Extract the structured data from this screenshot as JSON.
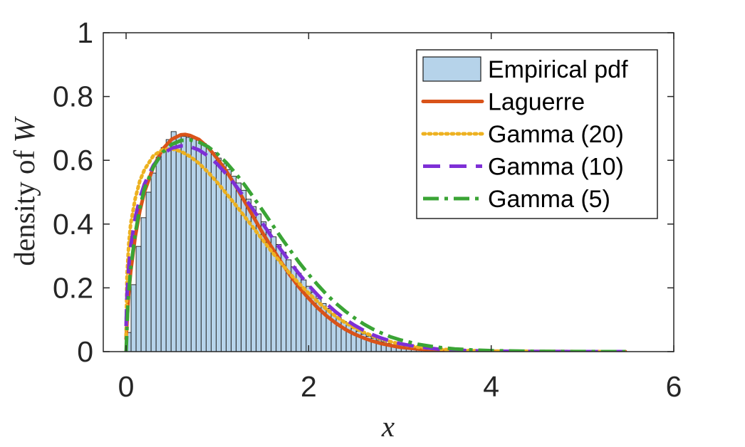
{
  "chart_data": {
    "type": "bar",
    "xlabel": "x",
    "ylabel_prefix": "density of ",
    "ylabel_var": "W",
    "xlim": [
      -0.25,
      6
    ],
    "ylim": [
      0,
      1
    ],
    "x_ticks": [
      0,
      2,
      4,
      6
    ],
    "x_tick_labels": [
      "0",
      "2",
      "4",
      "6"
    ],
    "y_ticks": [
      0,
      0.2,
      0.4,
      0.6,
      0.8,
      1
    ],
    "y_tick_labels": [
      "0",
      "0.2",
      "0.4",
      "0.6",
      "0.8",
      "1"
    ],
    "grid": false,
    "legend_position": "top-right",
    "histogram": {
      "name": "Empirical pdf",
      "color": "#b6d3ea",
      "edge_color": "#1a1a1a",
      "bin_width": 0.0548,
      "x_start": 0.0,
      "bins": 100,
      "values": [
        0.06,
        0.21,
        0.33,
        0.42,
        0.5,
        0.56,
        0.61,
        0.64,
        0.665,
        0.69,
        0.675,
        0.675,
        0.672,
        0.668,
        0.663,
        0.653,
        0.64,
        0.624,
        0.607,
        0.589,
        0.571,
        0.55,
        0.529,
        0.506,
        0.478,
        0.455,
        0.432,
        0.407,
        0.383,
        0.36,
        0.336,
        0.312,
        0.288,
        0.266,
        0.246,
        0.225,
        0.205,
        0.186,
        0.167,
        0.151,
        0.135,
        0.12,
        0.107,
        0.095,
        0.083,
        0.073,
        0.064,
        0.055,
        0.048,
        0.042,
        0.036,
        0.031,
        0.026,
        0.022,
        0.019,
        0.016,
        0.013,
        0.011,
        0.009,
        0.008,
        0.006,
        0.005,
        0.004,
        0.004,
        0.003,
        0.002,
        0.002,
        0.002,
        0.001,
        0.001,
        0.001,
        0.001,
        0.001,
        0.0005,
        0.0005,
        0.0005,
        0.0004,
        0.0003,
        0.0003,
        0.0002,
        0.0002,
        0.0002,
        0.0001,
        0.0001,
        0.0001,
        0.0001,
        0.0001,
        0.0001,
        0.0001,
        0.0001,
        0.0001,
        0.0001,
        0.0001,
        0.0001,
        0.0001,
        0.0001,
        0.0001,
        0.0001,
        0.0001,
        0.0001
      ]
    },
    "series": [
      {
        "name": "Laguerre",
        "color": "#d95319",
        "dash": "solid",
        "x": [
          0,
          0.025,
          0.05,
          0.1,
          0.15,
          0.2,
          0.3,
          0.4,
          0.5,
          0.6,
          0.65,
          0.7,
          0.8,
          0.9,
          1.0,
          1.1,
          1.2,
          1.3,
          1.4,
          1.5,
          1.6,
          1.7,
          1.8,
          1.9,
          2.0,
          2.1,
          2.2,
          2.3,
          2.4,
          2.5,
          2.6,
          2.7,
          2.8,
          2.9,
          3.0,
          3.2,
          3.4,
          3.6,
          3.8,
          4.0,
          4.5,
          5.0,
          5.47
        ],
        "y": [
          0.04,
          0.17,
          0.25,
          0.36,
          0.44,
          0.5,
          0.58,
          0.635,
          0.666,
          0.68,
          0.681,
          0.678,
          0.665,
          0.64,
          0.605,
          0.565,
          0.52,
          0.47,
          0.42,
          0.37,
          0.325,
          0.28,
          0.238,
          0.2,
          0.167,
          0.137,
          0.111,
          0.089,
          0.07,
          0.055,
          0.043,
          0.033,
          0.025,
          0.019,
          0.014,
          0.008,
          0.0045,
          0.0025,
          0.0014,
          0.0008,
          0.0002,
          0.0001,
          0.0
        ]
      },
      {
        "name": "Gamma (20)",
        "color": "#edb120",
        "dash": "dotted",
        "x": [
          0,
          0.01,
          0.03,
          0.05,
          0.1,
          0.15,
          0.2,
          0.3,
          0.4,
          0.5,
          0.6,
          0.7,
          0.8,
          0.9,
          1.0,
          1.1,
          1.2,
          1.3,
          1.4,
          1.5,
          1.6,
          1.7,
          1.8,
          1.9,
          2.0,
          2.1,
          2.2,
          2.3,
          2.4,
          2.5,
          2.6,
          2.7,
          2.8,
          2.9,
          3.0,
          3.2,
          3.4,
          3.6,
          3.8,
          4.0,
          4.5,
          5.0,
          5.47
        ],
        "y": [
          0.05,
          0.24,
          0.34,
          0.4,
          0.48,
          0.535,
          0.57,
          0.615,
          0.633,
          0.636,
          0.628,
          0.612,
          0.59,
          0.562,
          0.53,
          0.495,
          0.46,
          0.423,
          0.386,
          0.349,
          0.312,
          0.277,
          0.243,
          0.212,
          0.183,
          0.156,
          0.132,
          0.11,
          0.091,
          0.075,
          0.061,
          0.049,
          0.039,
          0.031,
          0.024,
          0.014,
          0.0085,
          0.005,
          0.0029,
          0.0017,
          0.0004,
          0.0001,
          0.0
        ]
      },
      {
        "name": "Gamma (10)",
        "color": "#7e2fd6",
        "dash": "dashed",
        "x": [
          0,
          0.01,
          0.03,
          0.05,
          0.1,
          0.15,
          0.2,
          0.3,
          0.4,
          0.5,
          0.6,
          0.65,
          0.7,
          0.8,
          0.9,
          1.0,
          1.1,
          1.2,
          1.3,
          1.4,
          1.5,
          1.6,
          1.7,
          1.8,
          1.9,
          2.0,
          2.1,
          2.2,
          2.3,
          2.4,
          2.5,
          2.6,
          2.7,
          2.8,
          2.9,
          3.0,
          3.2,
          3.4,
          3.6,
          3.8,
          4.0,
          4.5,
          5.0,
          5.47
        ],
        "y": [
          0.08,
          0.18,
          0.27,
          0.33,
          0.42,
          0.48,
          0.525,
          0.585,
          0.62,
          0.638,
          0.645,
          0.645,
          0.643,
          0.632,
          0.613,
          0.588,
          0.556,
          0.521,
          0.482,
          0.442,
          0.4,
          0.358,
          0.318,
          0.279,
          0.242,
          0.208,
          0.177,
          0.149,
          0.124,
          0.102,
          0.083,
          0.067,
          0.053,
          0.042,
          0.033,
          0.025,
          0.015,
          0.0085,
          0.0048,
          0.0027,
          0.0015,
          0.0003,
          0.0001,
          0.0
        ]
      },
      {
        "name": "Gamma (5)",
        "color": "#3aa435",
        "dash": "dashdot",
        "x": [
          0,
          0.02,
          0.05,
          0.1,
          0.15,
          0.2,
          0.3,
          0.4,
          0.5,
          0.6,
          0.7,
          0.8,
          0.9,
          1.0,
          1.1,
          1.2,
          1.3,
          1.4,
          1.5,
          1.6,
          1.7,
          1.8,
          1.9,
          2.0,
          2.1,
          2.2,
          2.3,
          2.4,
          2.5,
          2.6,
          2.7,
          2.8,
          2.9,
          3.0,
          3.2,
          3.4,
          3.6,
          3.8,
          4.0,
          4.5,
          5.0,
          5.47
        ],
        "y": [
          0.0,
          0.15,
          0.26,
          0.37,
          0.45,
          0.51,
          0.58,
          0.625,
          0.65,
          0.662,
          0.664,
          0.657,
          0.642,
          0.62,
          0.592,
          0.559,
          0.522,
          0.482,
          0.441,
          0.399,
          0.357,
          0.317,
          0.278,
          0.242,
          0.209,
          0.178,
          0.151,
          0.127,
          0.106,
          0.087,
          0.071,
          0.058,
          0.046,
          0.037,
          0.023,
          0.014,
          0.0085,
          0.0051,
          0.003,
          0.0008,
          0.0002,
          0.0
        ]
      }
    ]
  }
}
